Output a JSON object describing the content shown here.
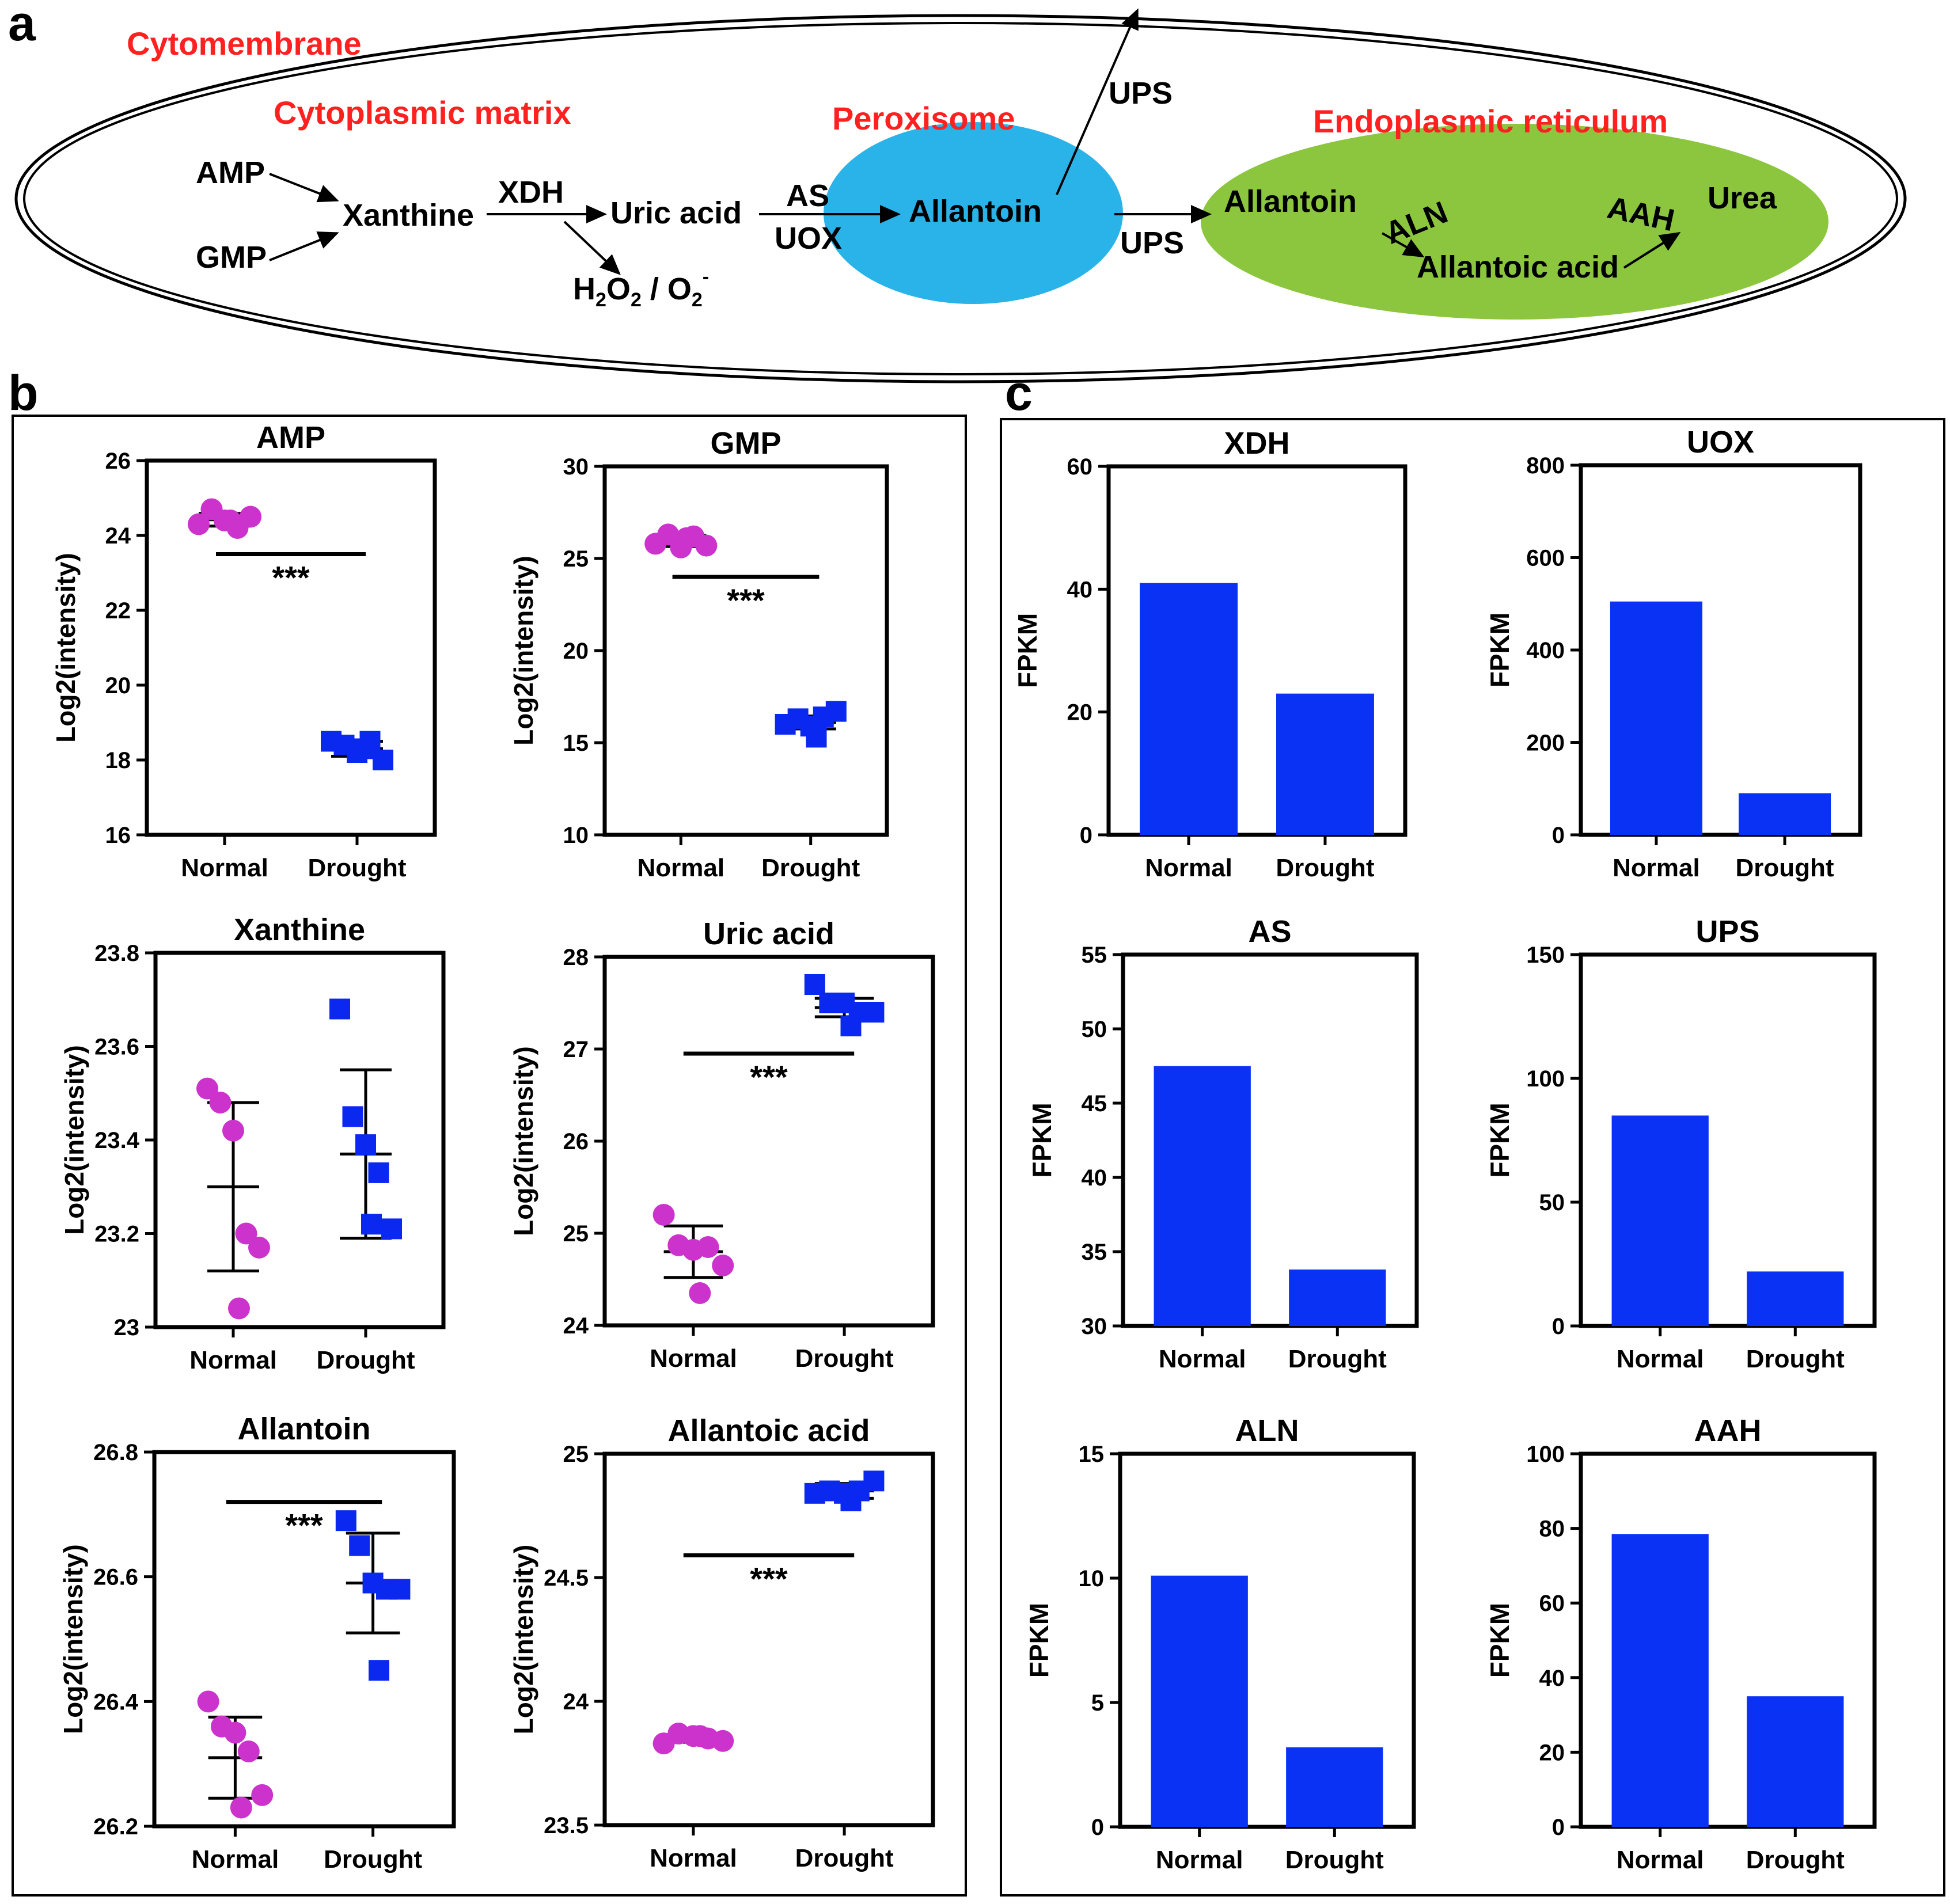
{
  "panel_labels": {
    "a": "a",
    "b": "b",
    "c": "c"
  },
  "colors": {
    "normal": "#cc33cc",
    "drought": "#0a28f0",
    "bar": "#0a32f5",
    "red_label": "#ff2020",
    "peroxisome": "#2ab3e8",
    "er": "#8cc63f",
    "axis": "#000000"
  },
  "pathway": {
    "cytomembrane": "Cytomembrane",
    "cytoplasmic_matrix": "Cytoplasmic matrix",
    "peroxisome": "Peroxisome",
    "endoplasmic_reticulum": "Endoplasmic reticulum",
    "amp": "AMP",
    "gmp": "GMP",
    "xanthine": "Xanthine",
    "xdh": "XDH",
    "uric_acid": "Uric acid",
    "h2o2": "H",
    "h2o2_sub": "2",
    "h2o2_o": "O",
    "h2o2_sub2": "2",
    "h2o2_sep": " / O",
    "h2o2_sub3": "2",
    "h2o2_sup": "-",
    "as": "AS",
    "uox": "UOX",
    "allantoin": "Allantoin",
    "ups_top": "UPS",
    "ups_mid": "UPS",
    "allantoin_er": "Allantoin",
    "aln": "ALN",
    "allantoic_acid": "Allantoic acid",
    "aah": "AAH",
    "urea": "Urea"
  },
  "chart_data": [
    {
      "type": "scatter",
      "panel": "b",
      "title": "AMP",
      "ylabel": "Log2(intensity)",
      "categories": [
        "Normal",
        "Drought"
      ],
      "ylim": [
        16,
        26
      ],
      "yticks": [
        16,
        18,
        20,
        22,
        24,
        26
      ],
      "series": [
        {
          "name": "Normal",
          "marker": "circle",
          "values": [
            24.3,
            24.7,
            24.4,
            24.2,
            24.5,
            24.4
          ],
          "mean": 24.42,
          "err": 0.17
        },
        {
          "name": "Drought",
          "marker": "square",
          "values": [
            18.5,
            18.4,
            18.2,
            18.5,
            18.0,
            18.3
          ],
          "mean": 18.3,
          "err": 0.2
        }
      ],
      "significance": {
        "label": "***",
        "y": 23.5
      }
    },
    {
      "type": "scatter",
      "panel": "b",
      "title": "GMP",
      "ylabel": "Log2(intensity)",
      "categories": [
        "Normal",
        "Drought"
      ],
      "ylim": [
        10,
        30
      ],
      "yticks": [
        10,
        15,
        20,
        25,
        30
      ],
      "series": [
        {
          "name": "Normal",
          "marker": "circle",
          "values": [
            25.8,
            26.3,
            25.6,
            26.2,
            25.7,
            26.1
          ],
          "mean": 25.95,
          "err": 0.3
        },
        {
          "name": "Drought",
          "marker": "square",
          "values": [
            16.0,
            16.3,
            15.9,
            16.4,
            16.7,
            15.3
          ],
          "mean": 16.1,
          "err": 0.35
        }
      ],
      "significance": {
        "label": "***",
        "y": 24.0
      }
    },
    {
      "type": "scatter",
      "panel": "b",
      "title": "Xanthine",
      "ylabel": "Log2(intensity)",
      "categories": [
        "Normal",
        "Drought"
      ],
      "ylim": [
        23.0,
        23.8
      ],
      "yticks": [
        23.0,
        23.2,
        23.4,
        23.6,
        23.8
      ],
      "series": [
        {
          "name": "Normal",
          "marker": "circle",
          "values": [
            23.51,
            23.48,
            23.42,
            23.2,
            23.17,
            23.04
          ],
          "mean": 23.3,
          "err": 0.18
        },
        {
          "name": "Drought",
          "marker": "square",
          "values": [
            23.68,
            23.45,
            23.39,
            23.33,
            23.21,
            23.22
          ],
          "mean": 23.37,
          "err": 0.18
        }
      ]
    },
    {
      "type": "scatter",
      "panel": "b",
      "title": "Uric acid",
      "ylabel": "Log2(intensity)",
      "categories": [
        "Normal",
        "Drought"
      ],
      "ylim": [
        24,
        28
      ],
      "yticks": [
        24,
        25,
        26,
        27,
        28
      ],
      "series": [
        {
          "name": "Normal",
          "marker": "circle",
          "values": [
            25.2,
            24.87,
            24.82,
            24.85,
            24.65,
            24.35
          ],
          "mean": 24.8,
          "err": 0.28
        },
        {
          "name": "Drought",
          "marker": "square",
          "values": [
            27.7,
            27.5,
            27.5,
            27.4,
            27.4,
            27.25
          ],
          "mean": 27.45,
          "err": 0.1
        }
      ],
      "significance": {
        "label": "***",
        "y": 26.95
      }
    },
    {
      "type": "scatter",
      "panel": "b",
      "title": "Allantoin",
      "ylabel": "Log2(intensity)",
      "categories": [
        "Normal",
        "Drought"
      ],
      "ylim": [
        26.2,
        26.8
      ],
      "yticks": [
        26.2,
        26.4,
        26.6,
        26.8
      ],
      "series": [
        {
          "name": "Normal",
          "marker": "circle",
          "values": [
            26.4,
            26.36,
            26.35,
            26.32,
            26.25,
            26.23
          ],
          "mean": 26.31,
          "err": 0.065
        },
        {
          "name": "Drought",
          "marker": "square",
          "values": [
            26.69,
            26.65,
            26.59,
            26.58,
            26.58,
            26.45
          ],
          "mean": 26.59,
          "err": 0.08
        }
      ],
      "significance": {
        "label": "***",
        "y": 26.72
      }
    },
    {
      "type": "scatter",
      "panel": "b",
      "title": "Allantoic acid",
      "ylabel": "Log2(intensity)",
      "categories": [
        "Normal",
        "Drought"
      ],
      "ylim": [
        23.5,
        25.0
      ],
      "yticks": [
        23.5,
        24.0,
        24.5,
        25.0
      ],
      "series": [
        {
          "name": "Normal",
          "marker": "circle",
          "values": [
            23.83,
            23.87,
            23.86,
            23.85,
            23.84,
            23.86
          ],
          "mean": 23.85,
          "err": 0.015
        },
        {
          "name": "Drought",
          "marker": "square",
          "values": [
            24.84,
            24.85,
            24.84,
            24.85,
            24.89,
            24.81
          ],
          "mean": 24.85,
          "err": 0.03
        }
      ],
      "significance": {
        "label": "***",
        "y": 24.59
      }
    },
    {
      "type": "bar",
      "panel": "c",
      "title": "XDH",
      "ylabel": "FPKM",
      "categories": [
        "Normal",
        "Drought"
      ],
      "values": [
        41,
        23
      ],
      "ylim": [
        0,
        60
      ],
      "yticks": [
        0,
        20,
        40,
        60
      ]
    },
    {
      "type": "bar",
      "panel": "c",
      "title": "UOX",
      "ylabel": "FPKM",
      "categories": [
        "Normal",
        "Drought"
      ],
      "values": [
        505,
        90
      ],
      "ylim": [
        0,
        800
      ],
      "yticks": [
        0,
        200,
        400,
        600,
        800
      ]
    },
    {
      "type": "bar",
      "panel": "c",
      "title": "AS",
      "ylabel": "FPKM",
      "categories": [
        "Normal",
        "Drought"
      ],
      "values": [
        47.5,
        33.8
      ],
      "ylim": [
        30,
        55
      ],
      "yticks": [
        30,
        35,
        40,
        45,
        50,
        55
      ]
    },
    {
      "type": "bar",
      "panel": "c",
      "title": "UPS",
      "ylabel": "FPKM",
      "categories": [
        "Normal",
        "Drought"
      ],
      "values": [
        85,
        22
      ],
      "ylim": [
        0,
        150
      ],
      "yticks": [
        0,
        50,
        100,
        150
      ]
    },
    {
      "type": "bar",
      "panel": "c",
      "title": "ALN",
      "ylabel": "FPKM",
      "categories": [
        "Normal",
        "Drought"
      ],
      "values": [
        10.1,
        3.2
      ],
      "ylim": [
        0,
        15
      ],
      "yticks": [
        0,
        5,
        10,
        15
      ]
    },
    {
      "type": "bar",
      "panel": "c",
      "title": "AAH",
      "ylabel": "FPKM",
      "categories": [
        "Normal",
        "Drought"
      ],
      "values": [
        78.5,
        35
      ],
      "ylim": [
        0,
        100
      ],
      "yticks": [
        0,
        20,
        40,
        60,
        80,
        100
      ]
    }
  ]
}
